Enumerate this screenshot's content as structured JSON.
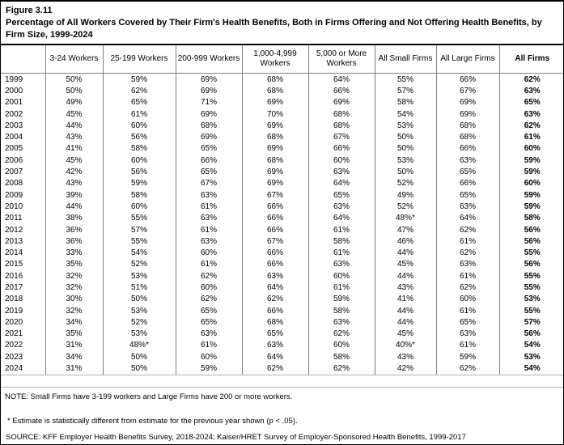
{
  "figure": {
    "label": "Figure 3.11",
    "title": "Percentage of All Workers Covered by Their Firm's Health Benefits, Both in Firms Offering and Not Offering Health Benefits, by Firm Size, 1999-2024"
  },
  "notes": {
    "note": "NOTE: Small Firms have 3-199 workers and Large Firms have 200 or more workers.",
    "footnote": "* Estimate is statistically different from estimate for the previous year shown (p < .05).",
    "source": "SOURCE: KFF Employer Health Benefits Survey, 2018-2024; Kaiser/HRET Survey of Employer-Sponsored Health Benefits, 1999-2017"
  },
  "chart_data": {
    "type": "table",
    "title": "Figure 3.11",
    "subtitle": "Percentage of All Workers Covered by Their Firm's Health Benefits, Both in Firms Offering and Not Offering Health Benefits, by Firm Size, 1999-2024",
    "columns": [
      "3-24 Workers",
      "25-199 Workers",
      "200-999 Workers",
      "1,000-4,999 Workers",
      "5,000 or More Workers",
      "All Small Firms",
      "All Large Firms",
      "All Firms"
    ],
    "years": [
      "1999",
      "2000",
      "2001",
      "2002",
      "2003",
      "2004",
      "2005",
      "2006",
      "2007",
      "2008",
      "2009",
      "2010",
      "2011",
      "2012",
      "2013",
      "2014",
      "2015",
      "2016",
      "2017",
      "2018",
      "2019",
      "2020",
      "2021",
      "2022",
      "2023",
      "2024"
    ],
    "rows": [
      [
        "50%",
        "59%",
        "69%",
        "68%",
        "64%",
        "55%",
        "66%",
        "62%"
      ],
      [
        "50%",
        "62%",
        "69%",
        "68%",
        "66%",
        "57%",
        "67%",
        "63%"
      ],
      [
        "49%",
        "65%",
        "71%",
        "69%",
        "69%",
        "58%",
        "69%",
        "65%"
      ],
      [
        "45%",
        "61%",
        "69%",
        "70%",
        "68%",
        "54%",
        "69%",
        "63%"
      ],
      [
        "44%",
        "60%",
        "68%",
        "69%",
        "68%",
        "53%",
        "68%",
        "62%"
      ],
      [
        "43%",
        "56%",
        "69%",
        "68%",
        "67%",
        "50%",
        "68%",
        "61%"
      ],
      [
        "41%",
        "58%",
        "65%",
        "69%",
        "66%",
        "50%",
        "66%",
        "60%"
      ],
      [
        "45%",
        "60%",
        "66%",
        "68%",
        "60%",
        "53%",
        "63%",
        "59%"
      ],
      [
        "42%",
        "56%",
        "65%",
        "69%",
        "63%",
        "50%",
        "65%",
        "59%"
      ],
      [
        "43%",
        "59%",
        "67%",
        "69%",
        "64%",
        "52%",
        "66%",
        "60%"
      ],
      [
        "39%",
        "58%",
        "63%",
        "67%",
        "65%",
        "49%",
        "65%",
        "59%"
      ],
      [
        "44%",
        "60%",
        "61%",
        "66%",
        "63%",
        "52%",
        "63%",
        "59%"
      ],
      [
        "38%",
        "55%",
        "63%",
        "66%",
        "64%",
        "48%*",
        "64%",
        "58%"
      ],
      [
        "36%",
        "57%",
        "61%",
        "66%",
        "61%",
        "47%",
        "62%",
        "56%"
      ],
      [
        "36%",
        "55%",
        "63%",
        "67%",
        "58%",
        "46%",
        "61%",
        "56%"
      ],
      [
        "33%",
        "54%",
        "60%",
        "66%",
        "61%",
        "44%",
        "62%",
        "55%"
      ],
      [
        "35%",
        "52%",
        "61%",
        "66%",
        "63%",
        "45%",
        "63%",
        "56%"
      ],
      [
        "32%",
        "53%",
        "62%",
        "63%",
        "60%",
        "44%",
        "61%",
        "55%"
      ],
      [
        "32%",
        "51%",
        "60%",
        "64%",
        "61%",
        "43%",
        "62%",
        "55%"
      ],
      [
        "30%",
        "50%",
        "62%",
        "62%",
        "59%",
        "41%",
        "60%",
        "53%"
      ],
      [
        "32%",
        "53%",
        "65%",
        "66%",
        "58%",
        "44%",
        "61%",
        "55%"
      ],
      [
        "34%",
        "52%",
        "65%",
        "68%",
        "63%",
        "44%",
        "65%",
        "57%"
      ],
      [
        "35%",
        "53%",
        "63%",
        "65%",
        "62%",
        "45%",
        "63%",
        "56%"
      ],
      [
        "31%",
        "48%*",
        "61%",
        "63%",
        "60%",
        "40%*",
        "61%",
        "54%"
      ],
      [
        "34%",
        "50%",
        "60%",
        "64%",
        "58%",
        "43%",
        "59%",
        "53%"
      ],
      [
        "31%",
        "50%",
        "59%",
        "62%",
        "62%",
        "42%",
        "62%",
        "54%"
      ]
    ],
    "layout_hints": {
      "first_column": "year",
      "bold_column": "All Firms",
      "asterisk_meaning": "Estimate is statistically different from estimate for the previous year shown (p < .05)"
    }
  }
}
